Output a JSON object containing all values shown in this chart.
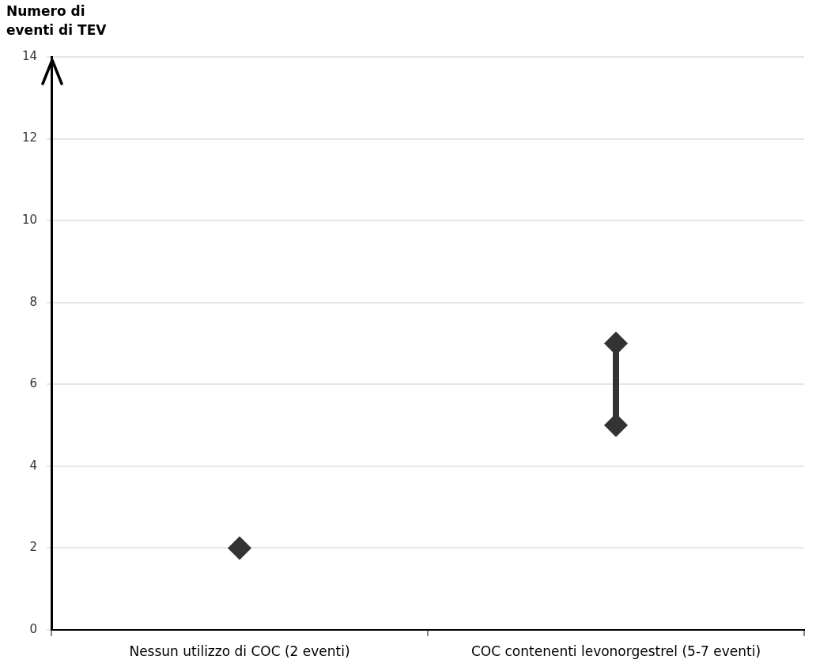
{
  "chart_data": {
    "type": "scatter",
    "ylabel": "Numero di\neventi di TEV",
    "categories": [
      "Nessun utilizzo di COC (2 eventi)",
      "COC contenenti levonorgestrel (5-7 eventi)"
    ],
    "series": [
      {
        "color": "#333333",
        "values": [
          2,
          null
        ]
      },
      {
        "type": "line",
        "color": "#333333",
        "x": [
          "COC contenenti levonorgestrel (5-7 eventi)",
          "COC contenenti levonorgestrel (5-7 eventi)"
        ],
        "values": [
          5,
          7
        ]
      }
    ],
    "ylim": [
      0,
      14
    ],
    "yticks": [
      0,
      2,
      4,
      6,
      8,
      10,
      12,
      14
    ],
    "grid": "y",
    "legend": false,
    "marker": "diamond"
  }
}
